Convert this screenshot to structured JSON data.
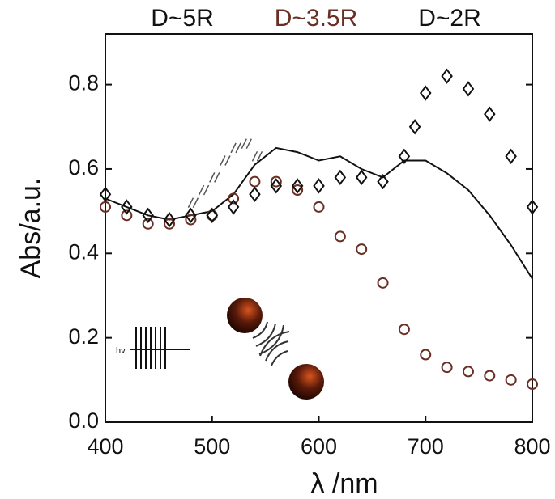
{
  "chart_data": {
    "type": "line",
    "xlabel": "λ /nm",
    "ylabel": "Abs/a.u.",
    "xlim": [
      400,
      800
    ],
    "ylim": [
      0,
      0.92
    ],
    "xticks": [
      400,
      500,
      600,
      700,
      800
    ],
    "yticks": [
      {
        "value": 0,
        "label": "0.0"
      },
      0.2,
      0.4,
      0.6,
      0.8
    ],
    "inset_label": "hv",
    "series": [
      {
        "name": "D~5R",
        "color": "#111111",
        "marker": "none",
        "x": [
          400,
          420,
          440,
          460,
          480,
          500,
          520,
          540,
          560,
          580,
          600,
          620,
          640,
          660,
          680,
          700,
          720,
          740,
          760,
          780,
          800
        ],
        "values": [
          0.53,
          0.51,
          0.49,
          0.48,
          0.49,
          0.5,
          0.54,
          0.61,
          0.65,
          0.64,
          0.62,
          0.63,
          0.6,
          0.58,
          0.62,
          0.62,
          0.59,
          0.55,
          0.49,
          0.42,
          0.34
        ]
      },
      {
        "name": "D~3.5R",
        "color": "#6b2e22",
        "marker": "circle",
        "x": [
          400,
          420,
          440,
          460,
          480,
          500,
          520,
          540,
          560,
          580,
          600,
          620,
          640,
          660,
          680,
          700,
          720,
          740,
          760,
          780,
          800
        ],
        "values": [
          0.51,
          0.49,
          0.47,
          0.47,
          0.48,
          0.49,
          0.53,
          0.57,
          0.57,
          0.55,
          0.51,
          0.44,
          0.41,
          0.33,
          0.22,
          0.16,
          0.13,
          0.12,
          0.11,
          0.1,
          0.09
        ]
      },
      {
        "name": "D~2R",
        "color": "#111111",
        "marker": "diamond",
        "x": [
          400,
          420,
          440,
          460,
          480,
          500,
          520,
          540,
          560,
          580,
          600,
          620,
          640,
          660,
          680,
          690,
          700,
          720,
          740,
          760,
          780,
          800
        ],
        "values": [
          0.54,
          0.51,
          0.49,
          0.48,
          0.49,
          0.49,
          0.51,
          0.54,
          0.56,
          0.56,
          0.56,
          0.58,
          0.58,
          0.57,
          0.63,
          0.7,
          0.78,
          0.82,
          0.79,
          0.73,
          0.63,
          0.51
        ]
      },
      {
        "color": "#555555",
        "marker": "hatch",
        "x": [
          480,
          490,
          500,
          510,
          520,
          530,
          540
        ],
        "values": [
          0.52,
          0.55,
          0.58,
          0.62,
          0.65,
          0.66,
          0.63
        ]
      }
    ]
  }
}
